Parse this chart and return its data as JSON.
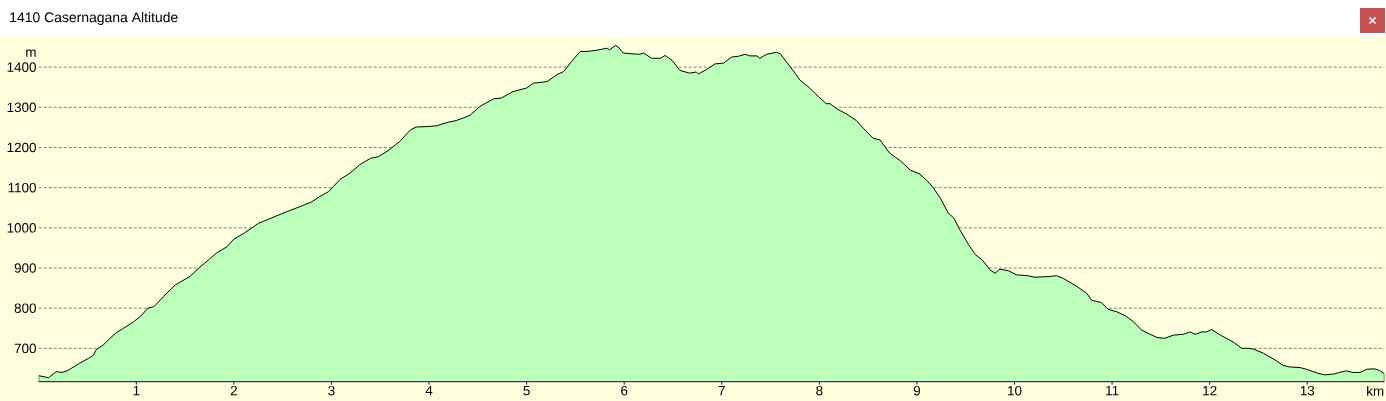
{
  "chart_data": {
    "type": "area",
    "title": "1410 Casernagana Altitude",
    "xlabel": "km",
    "ylabel": "m",
    "x": [
      0,
      0.1,
      0.18,
      0.24,
      0.29,
      0.36,
      0.42,
      0.51,
      0.56,
      0.59,
      0.66,
      0.73,
      0.8,
      0.87,
      0.97,
      1.04,
      1.12,
      1.18,
      1.28,
      1.4,
      1.55,
      1.65,
      1.74,
      1.82,
      1.93,
      2.0,
      2.1,
      2.18,
      2.25,
      2.34,
      2.44,
      2.54,
      2.68,
      2.8,
      2.88,
      2.97,
      3.02,
      3.09,
      3.19,
      3.29,
      3.4,
      3.48,
      3.58,
      3.7,
      3.81,
      3.87,
      3.98,
      4.08,
      4.18,
      4.28,
      4.42,
      4.52,
      4.66,
      4.74,
      4.86,
      5.0,
      5.07,
      5.21,
      5.31,
      5.38,
      5.46,
      5.55,
      5.62,
      5.72,
      5.82,
      5.85,
      5.91,
      5.94,
      5.99,
      6.09,
      6.16,
      6.2,
      6.28,
      6.37,
      6.42,
      6.49,
      6.57,
      6.67,
      6.74,
      6.76,
      6.85,
      6.93,
      7.02,
      7.1,
      7.17,
      7.24,
      7.29,
      7.36,
      7.39,
      7.46,
      7.56,
      7.6,
      7.66,
      7.75,
      7.8,
      7.9,
      7.99,
      8.07,
      8.11,
      8.18,
      8.28,
      8.38,
      8.45,
      8.55,
      8.62,
      8.72,
      8.83,
      8.93,
      9.03,
      9.1,
      9.17,
      9.24,
      9.32,
      9.38,
      9.44,
      9.53,
      9.6,
      9.67,
      9.75,
      9.8,
      9.85,
      9.94,
      10.02,
      10.13,
      10.21,
      10.37,
      10.43,
      10.5,
      10.64,
      10.74,
      10.79,
      10.89,
      10.96,
      11.05,
      11.15,
      11.22,
      11.3,
      11.39,
      11.46,
      11.54,
      11.63,
      11.73,
      11.8,
      11.85,
      11.92,
      11.97,
      12.02,
      12.11,
      12.24,
      12.33,
      12.4,
      12.45,
      12.55,
      12.67,
      12.75,
      12.81,
      12.93,
      12.99,
      13.11,
      13.18,
      13.27,
      13.33,
      13.4,
      13.47,
      13.54,
      13.61,
      13.69,
      13.74,
      13.79
    ],
    "values": [
      632,
      627,
      642,
      640,
      644,
      654,
      663,
      675,
      683,
      697,
      708,
      725,
      740,
      750,
      766,
      779,
      800,
      804,
      829,
      858,
      879,
      902,
      920,
      937,
      953,
      972,
      986,
      999,
      1011,
      1020,
      1030,
      1040,
      1053,
      1065,
      1078,
      1090,
      1103,
      1121,
      1136,
      1157,
      1173,
      1177,
      1192,
      1215,
      1244,
      1251,
      1252,
      1254,
      1262,
      1267,
      1280,
      1302,
      1321,
      1323,
      1339,
      1348,
      1360,
      1364,
      1381,
      1389,
      1414,
      1439,
      1439,
      1442,
      1447,
      1443,
      1454,
      1450,
      1435,
      1433,
      1432,
      1435,
      1422,
      1422,
      1429,
      1417,
      1392,
      1385,
      1388,
      1383,
      1395,
      1408,
      1410,
      1425,
      1427,
      1432,
      1428,
      1428,
      1422,
      1432,
      1437,
      1433,
      1414,
      1385,
      1368,
      1348,
      1327,
      1309,
      1309,
      1296,
      1283,
      1267,
      1248,
      1223,
      1219,
      1186,
      1167,
      1144,
      1134,
      1118,
      1099,
      1074,
      1037,
      1024,
      995,
      958,
      933,
      920,
      895,
      887,
      897,
      893,
      883,
      881,
      877,
      879,
      881,
      874,
      854,
      837,
      820,
      814,
      797,
      791,
      779,
      766,
      746,
      735,
      727,
      725,
      733,
      735,
      741,
      735,
      741,
      741,
      747,
      733,
      716,
      700,
      700,
      698,
      688,
      671,
      658,
      654,
      652,
      648,
      638,
      634,
      636,
      640,
      644,
      640,
      640,
      648,
      649,
      645,
      637
    ],
    "color": "#bbffbb",
    "xlim": [
      0,
      13.79
    ],
    "ylim": [
      617,
      1475
    ],
    "xticks": [
      1,
      2,
      3,
      4,
      5,
      6,
      7,
      8,
      9,
      10,
      11,
      12,
      13
    ],
    "yticks": [
      700,
      800,
      900,
      1000,
      1100,
      1200,
      1300,
      1400
    ],
    "grid": "y"
  }
}
